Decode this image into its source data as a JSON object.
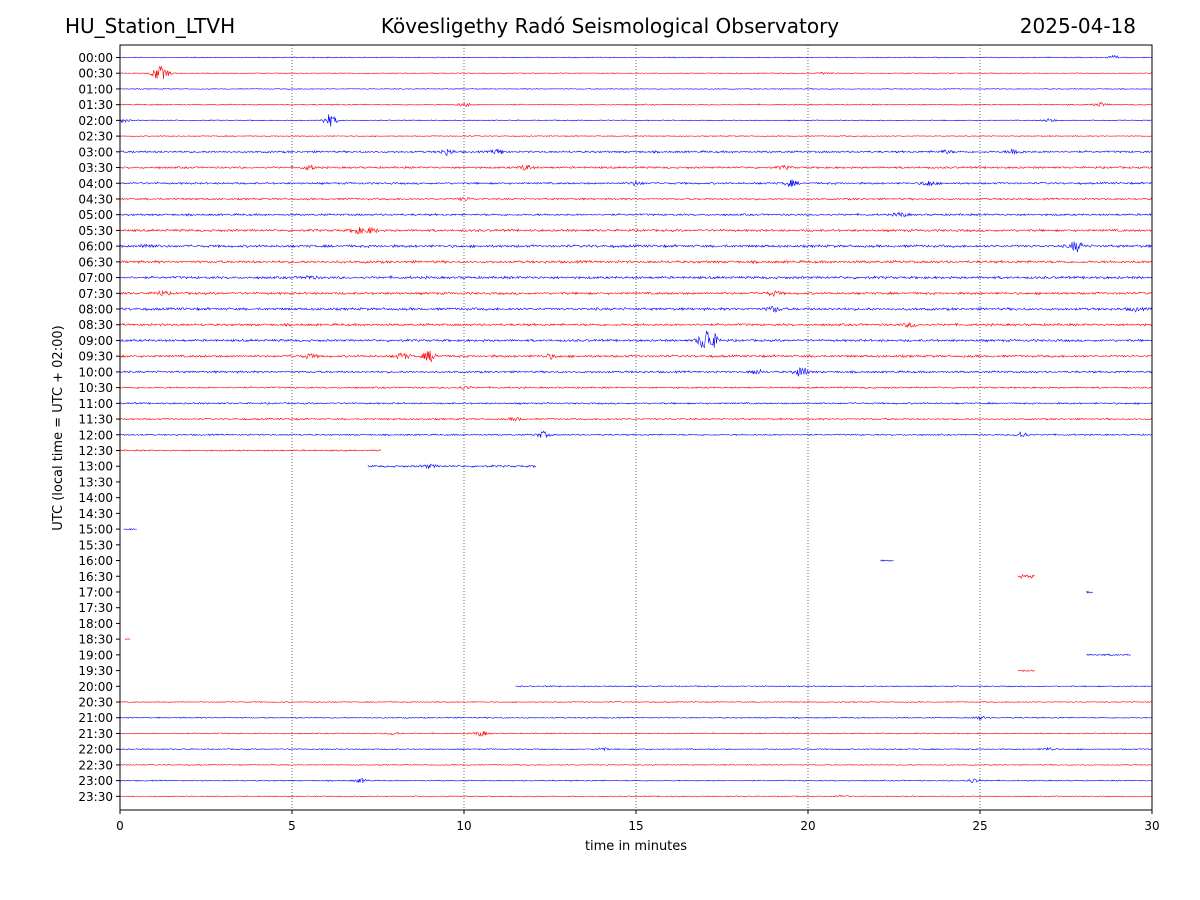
{
  "header": {
    "station": "HU_Station_LTVH",
    "observatory": "Kövesligethy Radó Seismological Observatory",
    "date": "2025-04-18"
  },
  "chart_data": {
    "type": "line",
    "title": "Kövesligethy Radó Seismological Observatory",
    "xlabel": "time in minutes",
    "ylabel": "UTC (local time = UTC + 02:00)",
    "xlim": [
      0,
      30
    ],
    "x_ticks": [
      0,
      5,
      10,
      15,
      20,
      25,
      30
    ],
    "x_gridlines": [
      5,
      10,
      15,
      20,
      25
    ],
    "grid": "vertical dotted",
    "y_labels": [
      "00:00",
      "00:30",
      "01:00",
      "01:30",
      "02:00",
      "02:30",
      "03:00",
      "03:30",
      "04:00",
      "04:30",
      "05:00",
      "05:30",
      "06:00",
      "06:30",
      "07:00",
      "07:30",
      "08:00",
      "08:30",
      "09:00",
      "09:30",
      "10:00",
      "10:30",
      "11:00",
      "11:30",
      "12:00",
      "12:30",
      "13:00",
      "13:30",
      "14:00",
      "14:30",
      "15:00",
      "15:30",
      "16:00",
      "16:30",
      "17:00",
      "17:30",
      "18:00",
      "18:30",
      "19:00",
      "19:30",
      "20:00",
      "20:30",
      "21:00",
      "21:30",
      "22:00",
      "22:30",
      "23:00",
      "23:30"
    ],
    "trace_colors": [
      "#0000ff",
      "#ff0000"
    ],
    "traces": [
      {
        "row": "00:00",
        "segments": [
          [
            0,
            30
          ]
        ],
        "noise": 0.6,
        "events": [
          [
            28.9,
            1.5
          ]
        ]
      },
      {
        "row": "00:30",
        "segments": [
          [
            0,
            30
          ]
        ],
        "noise": 0.5,
        "events": [
          [
            1.1,
            6
          ],
          [
            1.3,
            3
          ],
          [
            20.5,
            1
          ]
        ]
      },
      {
        "row": "01:00",
        "segments": [
          [
            0,
            30
          ]
        ],
        "noise": 0.5,
        "events": []
      },
      {
        "row": "01:30",
        "segments": [
          [
            0,
            30
          ]
        ],
        "noise": 0.7,
        "events": [
          [
            10.0,
            2
          ],
          [
            28.5,
            2
          ]
        ]
      },
      {
        "row": "02:00",
        "segments": [
          [
            0,
            30
          ]
        ],
        "noise": 0.6,
        "events": [
          [
            6.1,
            6
          ],
          [
            0.1,
            1.5
          ],
          [
            27.0,
            1.5
          ]
        ]
      },
      {
        "row": "02:30",
        "segments": [
          [
            0,
            30
          ]
        ],
        "noise": 0.6,
        "events": []
      },
      {
        "row": "03:00",
        "segments": [
          [
            0,
            30
          ]
        ],
        "noise": 1.2,
        "events": [
          [
            9.5,
            3
          ],
          [
            11.0,
            2.5
          ],
          [
            26.0,
            3
          ],
          [
            24.0,
            1.5
          ]
        ]
      },
      {
        "row": "03:30",
        "segments": [
          [
            0,
            30
          ]
        ],
        "noise": 1.2,
        "events": [
          [
            5.5,
            2
          ],
          [
            11.8,
            2.5
          ],
          [
            19.3,
            1.5
          ]
        ]
      },
      {
        "row": "04:00",
        "segments": [
          [
            0,
            30
          ]
        ],
        "noise": 1.2,
        "events": [
          [
            19.5,
            3
          ],
          [
            23.5,
            2.5
          ],
          [
            15.0,
            1.8
          ]
        ]
      },
      {
        "row": "04:30",
        "segments": [
          [
            0,
            30
          ]
        ],
        "noise": 1.1,
        "events": [
          [
            10.0,
            1.5
          ]
        ]
      },
      {
        "row": "05:00",
        "segments": [
          [
            0,
            30
          ]
        ],
        "noise": 1.2,
        "events": [
          [
            22.7,
            2
          ]
        ]
      },
      {
        "row": "05:30",
        "segments": [
          [
            0,
            30
          ]
        ],
        "noise": 1.4,
        "events": [
          [
            6.9,
            3
          ],
          [
            7.3,
            2.5
          ]
        ]
      },
      {
        "row": "06:00",
        "segments": [
          [
            0,
            30
          ]
        ],
        "noise": 1.5,
        "events": [
          [
            27.8,
            5
          ],
          [
            0.8,
            2
          ]
        ]
      },
      {
        "row": "06:30",
        "segments": [
          [
            0,
            30
          ]
        ],
        "noise": 1.5,
        "events": []
      },
      {
        "row": "07:00",
        "segments": [
          [
            0,
            30
          ]
        ],
        "noise": 1.5,
        "events": [
          [
            5.5,
            1.5
          ]
        ]
      },
      {
        "row": "07:30",
        "segments": [
          [
            0,
            30
          ]
        ],
        "noise": 1.4,
        "events": [
          [
            1.2,
            2
          ],
          [
            19.0,
            2
          ]
        ]
      },
      {
        "row": "08:00",
        "segments": [
          [
            0,
            30
          ]
        ],
        "noise": 1.5,
        "events": [
          [
            19.0,
            2.5
          ],
          [
            29.5,
            1.5
          ]
        ]
      },
      {
        "row": "08:30",
        "segments": [
          [
            0,
            30
          ]
        ],
        "noise": 1.4,
        "events": [
          [
            23.0,
            2
          ]
        ]
      },
      {
        "row": "09:00",
        "segments": [
          [
            0,
            30
          ]
        ],
        "noise": 1.4,
        "events": [
          [
            17.0,
            9
          ],
          [
            17.2,
            7
          ]
        ]
      },
      {
        "row": "09:30",
        "segments": [
          [
            0,
            30
          ]
        ],
        "noise": 1.4,
        "events": [
          [
            9.0,
            5
          ],
          [
            8.2,
            3
          ],
          [
            5.5,
            2
          ],
          [
            12.5,
            2
          ]
        ]
      },
      {
        "row": "10:00",
        "segments": [
          [
            0,
            30
          ]
        ],
        "noise": 1.2,
        "events": [
          [
            19.8,
            5
          ],
          [
            18.5,
            2
          ]
        ]
      },
      {
        "row": "10:30",
        "segments": [
          [
            0,
            30
          ]
        ],
        "noise": 1.0,
        "events": [
          [
            10.0,
            1.5
          ]
        ]
      },
      {
        "row": "11:00",
        "segments": [
          [
            0,
            30
          ]
        ],
        "noise": 1.0,
        "events": []
      },
      {
        "row": "11:30",
        "segments": [
          [
            0,
            30
          ]
        ],
        "noise": 1.0,
        "events": [
          [
            11.5,
            1.5
          ]
        ]
      },
      {
        "row": "12:00",
        "segments": [
          [
            0,
            30
          ]
        ],
        "noise": 0.9,
        "events": [
          [
            12.3,
            3
          ],
          [
            26.2,
            3
          ]
        ]
      },
      {
        "row": "12:30",
        "segments": [
          [
            0,
            7.6
          ]
        ],
        "noise": 0.9,
        "events": []
      },
      {
        "row": "13:00",
        "segments": [
          [
            7.2,
            12.1
          ]
        ],
        "noise": 1.2,
        "events": [
          [
            9.0,
            1.5
          ]
        ]
      },
      {
        "row": "15:00",
        "segments": [
          [
            0.1,
            0.5
          ]
        ],
        "noise": 0.9,
        "events": []
      },
      {
        "row": "16:00",
        "segments": [
          [
            22.1,
            22.5
          ]
        ],
        "noise": 1.0,
        "events": []
      },
      {
        "row": "16:30",
        "segments": [
          [
            26.1,
            26.6
          ]
        ],
        "noise": 2.2,
        "events": []
      },
      {
        "row": "17:00",
        "segments": [
          [
            28.1,
            28.3
          ]
        ],
        "noise": 2.2,
        "events": []
      },
      {
        "row": "18:30",
        "segments": [
          [
            0.15,
            0.3
          ]
        ],
        "noise": 1.0,
        "events": []
      },
      {
        "row": "19:00",
        "segments": [
          [
            28.1,
            29.4
          ]
        ],
        "noise": 1.0,
        "events": []
      },
      {
        "row": "19:30",
        "segments": [
          [
            26.1,
            26.6
          ]
        ],
        "noise": 1.0,
        "events": []
      },
      {
        "row": "20:00",
        "segments": [
          [
            11.5,
            30
          ]
        ],
        "noise": 0.7,
        "events": []
      },
      {
        "row": "20:30",
        "segments": [
          [
            0,
            30
          ]
        ],
        "noise": 0.6,
        "events": []
      },
      {
        "row": "21:00",
        "segments": [
          [
            0,
            30
          ]
        ],
        "noise": 0.7,
        "events": [
          [
            25.0,
            1.5
          ]
        ]
      },
      {
        "row": "21:30",
        "segments": [
          [
            0,
            30
          ]
        ],
        "noise": 0.7,
        "events": [
          [
            10.5,
            2.5
          ],
          [
            8.0,
            1.5
          ]
        ]
      },
      {
        "row": "22:00",
        "segments": [
          [
            0,
            30
          ]
        ],
        "noise": 0.7,
        "events": [
          [
            14.0,
            1.5
          ],
          [
            27.0,
            1.5
          ]
        ]
      },
      {
        "row": "22:30",
        "segments": [
          [
            0,
            30
          ]
        ],
        "noise": 0.6,
        "events": []
      },
      {
        "row": "23:00",
        "segments": [
          [
            0,
            30
          ]
        ],
        "noise": 0.7,
        "events": [
          [
            7.0,
            2
          ],
          [
            24.8,
            2
          ]
        ]
      },
      {
        "row": "23:30",
        "segments": [
          [
            0,
            30
          ]
        ],
        "noise": 0.6,
        "events": [
          [
            21.0,
            1.2
          ]
        ]
      }
    ]
  }
}
